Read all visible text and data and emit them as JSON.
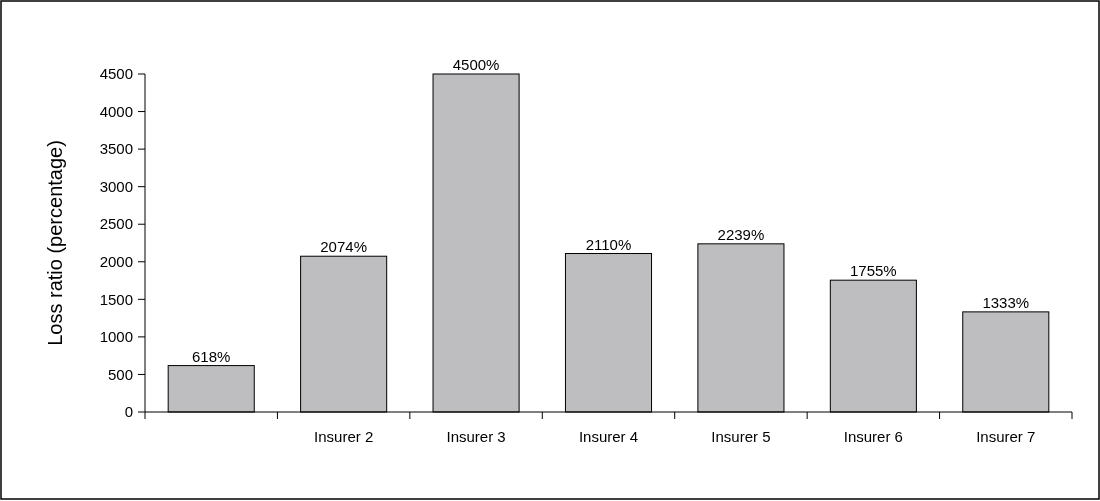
{
  "chart_data": {
    "type": "bar",
    "ylabel": "Loss ratio (percentage)",
    "categories": [
      null,
      "Insurer 2",
      "Insurer 3",
      "Insurer 4",
      "Insurer 5",
      "Insurer 6",
      "Insurer 7"
    ],
    "values": [
      618,
      2074,
      4500,
      2110,
      2239,
      1755,
      1333
    ],
    "value_labels": [
      "618%",
      "2074%",
      "4500%",
      "2110%",
      "2239%",
      "1755%",
      "1333%"
    ],
    "color": "#bebec0",
    "ylim": [
      0,
      4500
    ],
    "yticks": [
      0,
      500,
      1000,
      1500,
      2000,
      2500,
      3000,
      3500,
      4000,
      4500
    ],
    "grid": false
  }
}
